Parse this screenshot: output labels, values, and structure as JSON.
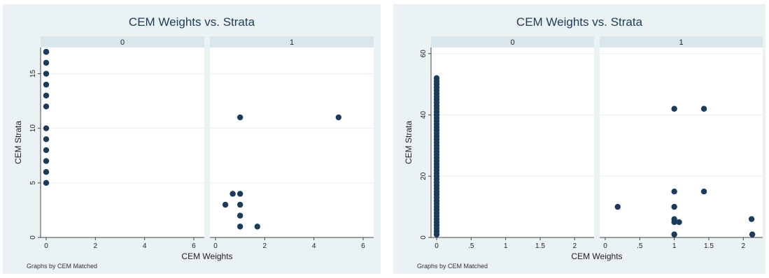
{
  "chart_data": [
    {
      "type": "scatter",
      "title": "CEM Weights vs. Strata",
      "xlabel": "CEM Weights",
      "ylabel": "CEM Strata",
      "note": "Graphs by CEM Matched",
      "panels": [
        "0",
        "1"
      ],
      "xlim": [
        0,
        6.2
      ],
      "ylim": [
        0,
        17.4
      ],
      "xticks": [
        0,
        2,
        4,
        6
      ],
      "yticks": [
        0,
        5,
        10,
        15
      ],
      "grid": true,
      "series": [
        {
          "panel": "0",
          "x": [
            0,
            0,
            0,
            0,
            0,
            0,
            0,
            0,
            0,
            0,
            0,
            0,
            0
          ],
          "y": [
            5,
            6,
            7,
            8,
            9,
            10,
            12,
            13,
            14,
            15,
            16,
            17,
            17
          ]
        },
        {
          "panel": "1",
          "x": [
            1.0,
            5.0,
            0.7,
            1.0,
            0.4,
            1.0,
            1.0,
            1.0,
            1.7
          ],
          "y": [
            11,
            11,
            4,
            4,
            3,
            3,
            2,
            1,
            1
          ]
        }
      ]
    },
    {
      "type": "scatter",
      "title": "CEM Weights vs. Strata",
      "xlabel": "CEM Weights",
      "ylabel": "CEM Strata",
      "note": "Graphs by CEM Matched",
      "panels": [
        "0",
        "1"
      ],
      "xlim": [
        0,
        2.2
      ],
      "ylim": [
        0,
        62
      ],
      "xticks": [
        0,
        0.5,
        1,
        1.5,
        2
      ],
      "xticklabels": [
        "0",
        ".5",
        "1",
        "1.5",
        "2"
      ],
      "yticks": [
        0,
        20,
        40,
        60
      ],
      "grid": true,
      "series": [
        {
          "panel": "0",
          "x": [
            0,
            0,
            0,
            0,
            0,
            0,
            0,
            0,
            0,
            0,
            0,
            0,
            0,
            0,
            0,
            0,
            0,
            0,
            0,
            0,
            0,
            0,
            0,
            0,
            0,
            0,
            0,
            0,
            0,
            0,
            0,
            0,
            0,
            0,
            0,
            0,
            0,
            0,
            0,
            0,
            0,
            0,
            0,
            0,
            0,
            0,
            0,
            0,
            0,
            0,
            0,
            0
          ],
          "y": [
            1,
            2,
            3,
            4,
            5,
            6,
            7,
            8,
            9,
            10,
            11,
            12,
            13,
            14,
            15,
            16,
            17,
            18,
            19,
            20,
            21,
            22,
            23,
            24,
            25,
            26,
            27,
            28,
            29,
            30,
            31,
            32,
            33,
            34,
            35,
            36,
            37,
            38,
            39,
            40,
            41,
            42,
            43,
            44,
            45,
            46,
            47,
            48,
            49,
            50,
            51,
            52
          ]
        },
        {
          "panel": "1",
          "x": [
            1.0,
            1.43,
            0.18,
            1.0,
            1.43,
            1.0,
            1.0,
            1.0,
            1.07,
            2.12,
            2.13,
            1.0
          ],
          "y": [
            42,
            42,
            10,
            15,
            15,
            10,
            6,
            5,
            5,
            6,
            1,
            1
          ]
        }
      ]
    }
  ]
}
